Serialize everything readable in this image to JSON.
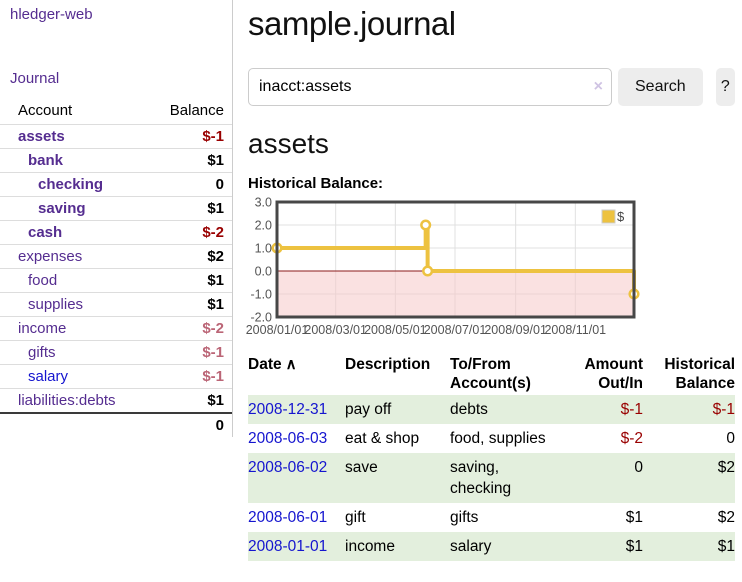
{
  "app": {
    "title": "hledger-web"
  },
  "colors": {
    "purple": "#552d90",
    "blue": "#1515cf",
    "neg-strong": "#990000",
    "neg-soft": "#bb6576",
    "stripe": "#e3efdd"
  },
  "sidebar": {
    "journal_link": "Journal",
    "account_header": "Account",
    "balance_header": "Balance",
    "accounts": [
      {
        "name": "assets",
        "depth": 0,
        "emph": true,
        "balance": "$-1"
      },
      {
        "name": "bank",
        "depth": 1,
        "emph": true,
        "balance": "$1"
      },
      {
        "name": "checking",
        "depth": 2,
        "emph": true,
        "balance": "0"
      },
      {
        "name": "saving",
        "depth": 2,
        "emph": true,
        "balance": "$1"
      },
      {
        "name": "cash",
        "depth": 1,
        "emph": true,
        "balance": "$-2"
      },
      {
        "name": "expenses",
        "depth": 0,
        "emph": false,
        "balance": "$2"
      },
      {
        "name": "food",
        "depth": 1,
        "emph": false,
        "balance": "$1"
      },
      {
        "name": "supplies",
        "depth": 1,
        "emph": false,
        "balance": "$1"
      },
      {
        "name": "income",
        "depth": 0,
        "emph": false,
        "balance": "$-2"
      },
      {
        "name": "gifts",
        "depth": 1,
        "emph": false,
        "balance": "$-1"
      },
      {
        "name": "salary",
        "depth": 1,
        "emph": false,
        "balance": "$-1",
        "link_style": "unvisited"
      },
      {
        "name": "liabilities:debts",
        "depth": 0,
        "emph": false,
        "balance": "$1"
      }
    ],
    "total": "0"
  },
  "header": {
    "title": "sample.journal"
  },
  "search": {
    "value": "inacct:assets",
    "clear_icon": "×",
    "button": "Search",
    "help_button": "?"
  },
  "account_page": {
    "title": "assets",
    "chart_label": "Historical Balance:"
  },
  "chart_data": {
    "type": "line",
    "title": "Historical Balance",
    "step": true,
    "series": [
      {
        "name": "$",
        "points": [
          [
            "2008-01-01",
            1
          ],
          [
            "2008-06-01",
            2
          ],
          [
            "2008-06-03",
            0
          ],
          [
            "2008-12-31",
            -1
          ]
        ]
      }
    ],
    "xlim": [
      "2008-01-01",
      "2008-12-31"
    ],
    "ylim": [
      -2,
      3
    ],
    "yticks": [
      3.0,
      2.0,
      1.0,
      0.0,
      -1.0,
      -2.0
    ],
    "xticks": [
      "2008/01/01",
      "2008/03/01",
      "2008/05/01",
      "2008/07/01",
      "2008/09/01",
      "2008/11/01"
    ],
    "legend": {
      "position": "top-right",
      "label": "$"
    },
    "grid": true,
    "line_color": "#edc240",
    "negative_region_fill": "#f6c9c9",
    "zero_line_color": "#8b1a1a",
    "border_color": "#474747",
    "gridline_color": "#e0e0e0",
    "tick_color": "#545454"
  },
  "register": {
    "columns": {
      "date": "Date",
      "description": "Description",
      "accounts": "To/From Account(s)",
      "amount": "Amount Out/In",
      "balance": "Historical Balance"
    },
    "sort_icon": "∧",
    "rows": [
      {
        "date": "2008-12-31",
        "description": "pay off",
        "accounts": "debts",
        "amount": "$-1",
        "balance": "$-1"
      },
      {
        "date": "2008-06-03",
        "description": "eat & shop",
        "accounts": "food, supplies",
        "amount": "$-2",
        "balance": "0"
      },
      {
        "date": "2008-06-02",
        "description": "save",
        "accounts": "saving, checking",
        "amount": "0",
        "balance": "$2"
      },
      {
        "date": "2008-06-01",
        "description": "gift",
        "accounts": "gifts",
        "amount": "$1",
        "balance": "$2"
      },
      {
        "date": "2008-01-01",
        "description": "income",
        "accounts": "salary",
        "amount": "$1",
        "balance": "$1"
      }
    ]
  }
}
